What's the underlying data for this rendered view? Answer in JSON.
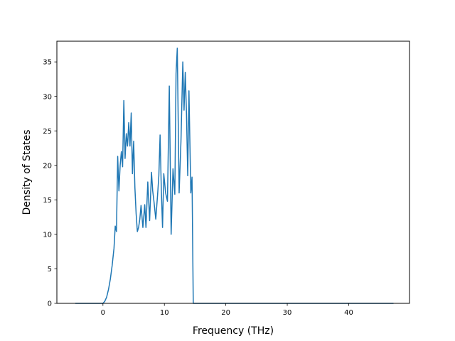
{
  "chart_data": {
    "type": "line",
    "title": "",
    "xlabel": "Frequency (THz)",
    "ylabel": "Density of States",
    "xlim": [
      -7.5,
      49.9
    ],
    "ylim": [
      0,
      38
    ],
    "xticks": [
      0,
      10,
      20,
      30,
      40
    ],
    "yticks": [
      0,
      5,
      10,
      15,
      20,
      25,
      30,
      35
    ],
    "grid": false,
    "legend": "none",
    "colors": {
      "line": "#1f77b4",
      "axes": "#000000",
      "background": "#ffffff"
    },
    "series": [
      {
        "x": [
          -4.5,
          -2.0,
          0.0,
          0.3,
          0.6,
          0.9,
          1.2,
          1.5,
          1.8,
          2.0,
          2.2,
          2.4,
          2.6,
          2.8,
          3.0,
          3.2,
          3.4,
          3.6,
          3.8,
          4.0,
          4.2,
          4.4,
          4.6,
          4.8,
          5.0,
          5.2,
          5.4,
          5.6,
          5.8,
          6.0,
          6.2,
          6.5,
          6.8,
          7.0,
          7.3,
          7.6,
          7.9,
          8.1,
          8.3,
          8.6,
          8.9,
          9.1,
          9.3,
          9.5,
          9.7,
          9.9,
          10.2,
          10.5,
          10.8,
          11.1,
          11.4,
          11.7,
          11.9,
          12.1,
          12.4,
          12.7,
          13.0,
          13.2,
          13.4,
          13.6,
          13.8,
          14.0,
          14.3,
          14.5,
          14.7,
          14.9,
          15.1,
          15.3,
          15.5,
          15.7,
          15.9,
          16.1,
          16.3,
          16.5,
          16.7,
          16.9,
          17.1,
          17.3,
          17.5,
          20.0,
          30.0,
          40.0,
          47.3
        ],
        "values": [
          0,
          0,
          0,
          0.3,
          0.9,
          2.0,
          3.5,
          5.5,
          8.0,
          11.2,
          10.4,
          21.3,
          16.3,
          20.0,
          22.0,
          19.8,
          29.4,
          21.0,
          24.6,
          22.8,
          26.2,
          22.8,
          27.6,
          18.8,
          23.5,
          16.8,
          13.0,
          10.4,
          11.0,
          12.2,
          14.2,
          11.0,
          14.3,
          11.0,
          17.6,
          12.0,
          19.0,
          16.3,
          14.8,
          12.2,
          15.8,
          18.5,
          24.4,
          16.5,
          11.0,
          18.8,
          16.0,
          14.8,
          31.5,
          10.0,
          19.5,
          15.8,
          33.3,
          37.0,
          16.0,
          23.5,
          35.0,
          28.0,
          33.5,
          27.5,
          18.5,
          30.8,
          16.0,
          18.3,
          0,
          0,
          0,
          0,
          0,
          0,
          0,
          0,
          0,
          0,
          0,
          0,
          0,
          0,
          0,
          0,
          0,
          0,
          0
        ]
      }
    ]
  }
}
